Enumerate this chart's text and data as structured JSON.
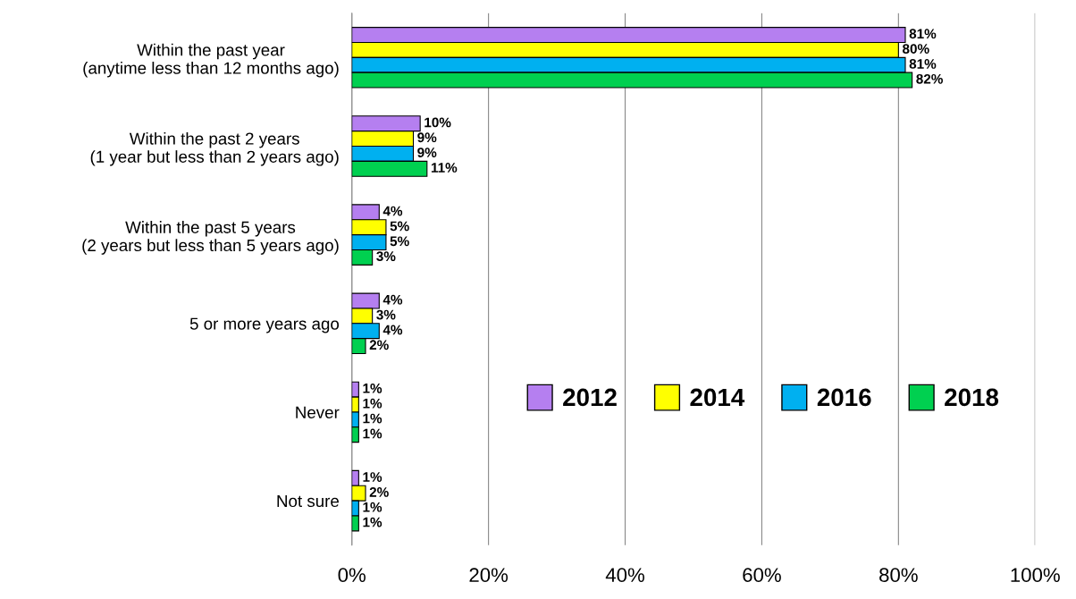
{
  "chart_data": {
    "type": "bar",
    "orientation": "horizontal",
    "categories": [
      "Within the past year\n(anytime less than 12 months ago)",
      "Within the past 2 years\n(1 year but less than 2 years ago)",
      "Within the past 5 years\n(2 years but less than 5 years ago)",
      "5 or more years ago",
      "Never",
      "Not sure"
    ],
    "series": [
      {
        "name": "2012",
        "color": "#b57ff0",
        "values": [
          81,
          10,
          4,
          4,
          1,
          1
        ],
        "value_labels": [
          "81%",
          "10%",
          "4%",
          "4%",
          "1%",
          "1%"
        ]
      },
      {
        "name": "2014",
        "color": "#ffff00",
        "values": [
          80,
          9,
          5,
          3,
          1,
          2
        ],
        "value_labels": [
          "80%",
          "9%",
          "5%",
          "3%",
          "1%",
          "2%"
        ]
      },
      {
        "name": "2016",
        "color": "#00b0f0",
        "values": [
          81,
          9,
          5,
          4,
          1,
          1
        ],
        "value_labels": [
          "81%",
          "9%",
          "5%",
          "4%",
          "1%",
          "1%"
        ]
      },
      {
        "name": "2018",
        "color": "#00d050",
        "values": [
          82,
          11,
          3,
          2,
          1,
          1
        ],
        "value_labels": [
          "82%",
          "11%",
          "3%",
          "2%",
          "1%",
          "1%"
        ]
      }
    ],
    "xlim": [
      0,
      100
    ],
    "xticks": [
      {
        "value": 0,
        "label": "0%"
      },
      {
        "value": 20,
        "label": "20%"
      },
      {
        "value": 40,
        "label": "40%"
      },
      {
        "value": 60,
        "label": "60%"
      },
      {
        "value": 80,
        "label": "80%"
      },
      {
        "value": 100,
        "label": "100%"
      }
    ],
    "grid": "x",
    "legend": "lower right"
  }
}
